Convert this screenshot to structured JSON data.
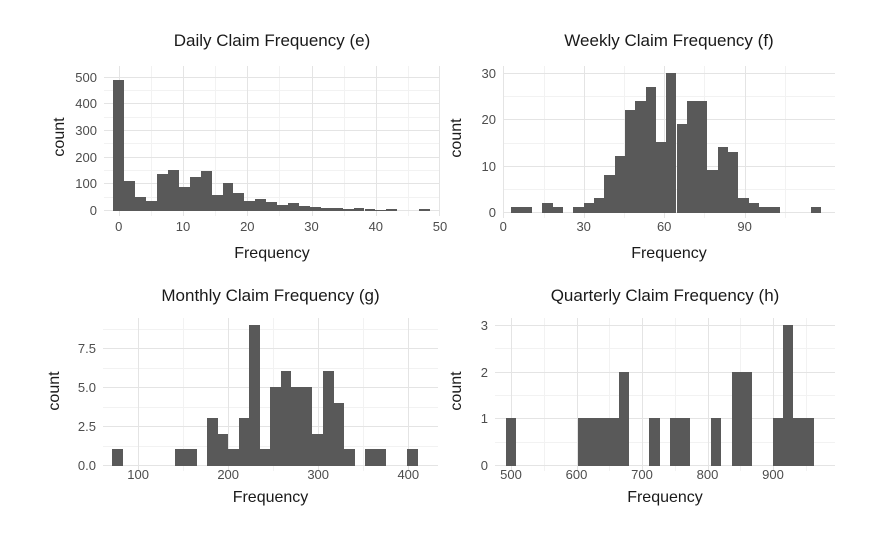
{
  "figure": {
    "background": "#ffffff",
    "bar_color": "#595959",
    "grid_major_color": "#e4e4e4",
    "grid_minor_color": "#f2f2f2",
    "tick_label_color": "#4d4d4d",
    "text_color": "#1a1a1a"
  },
  "chart_data": [
    {
      "type": "bar",
      "subtype": "histogram",
      "title": "Daily Claim Frequency (e)",
      "xlabel": "Frequency",
      "ylabel": "count",
      "bin_start": -0.85,
      "bin_width": 1.7,
      "counts": [
        487,
        110,
        50,
        32,
        134,
        150,
        85,
        125,
        145,
        58,
        100,
        62,
        35,
        42,
        30,
        18,
        25,
        14,
        12,
        8,
        6,
        4,
        8,
        2,
        1,
        2,
        0,
        0,
        2
      ],
      "xlim": [
        -2.3,
        50
      ],
      "ylim": [
        0,
        540
      ],
      "x_ticks": [
        0,
        10,
        20,
        30,
        40,
        50
      ],
      "x_tick_labels": [
        "0",
        "10",
        "20",
        "30",
        "40",
        "50"
      ],
      "x_minor": [
        5,
        15,
        25,
        35,
        45
      ],
      "y_ticks": [
        0,
        100,
        200,
        300,
        400,
        500
      ],
      "y_tick_labels": [
        "0",
        "100",
        "200",
        "300",
        "400",
        "500"
      ],
      "y_minor": [
        50,
        150,
        250,
        350,
        450
      ],
      "grid": true,
      "legend": false
    },
    {
      "type": "bar",
      "subtype": "histogram",
      "title": "Weekly Claim Frequency (f)",
      "xlabel": "Frequency",
      "ylabel": "count",
      "bin_start": 3,
      "bin_width": 3.85,
      "counts": [
        1,
        1,
        0,
        2,
        1,
        0,
        1,
        2,
        3,
        8,
        12,
        22,
        24,
        27,
        15,
        30,
        19,
        24,
        24,
        9,
        14,
        13,
        3,
        2,
        1,
        1,
        0,
        0,
        0,
        1
      ],
      "xlim": [
        -0.1,
        123.7
      ],
      "ylim": [
        0,
        31.5
      ],
      "x_ticks": [
        0,
        30,
        60,
        90
      ],
      "x_tick_labels": [
        "0",
        "30",
        "60",
        "90"
      ],
      "x_minor": [
        15,
        45,
        75,
        105
      ],
      "y_ticks": [
        0,
        10,
        20,
        30
      ],
      "y_tick_labels": [
        "0",
        "10",
        "20",
        "30"
      ],
      "y_minor": [
        5,
        15,
        25
      ],
      "grid": true,
      "legend": false
    },
    {
      "type": "bar",
      "subtype": "histogram",
      "title": "Monthly Claim Frequency (g)",
      "xlabel": "Frequency",
      "ylabel": "count",
      "bin_start": 71.3,
      "bin_width": 11.7,
      "counts": [
        1,
        0,
        0,
        0,
        0,
        0,
        1,
        1,
        0,
        3,
        2,
        1,
        3,
        9,
        1,
        5,
        6,
        5,
        5,
        2,
        6,
        4,
        1,
        0,
        1,
        1,
        0,
        0,
        1
      ],
      "xlim": [
        61,
        433
      ],
      "ylim": [
        0,
        9.42
      ],
      "x_ticks": [
        100,
        200,
        300,
        400
      ],
      "x_tick_labels": [
        "100",
        "200",
        "300",
        "400"
      ],
      "x_minor": [
        150,
        250,
        350
      ],
      "y_ticks": [
        0,
        2.5,
        5,
        7.5
      ],
      "y_tick_labels": [
        "0.0",
        "2.5",
        "5.0",
        "7.5"
      ],
      "y_minor": [
        1.25,
        3.75,
        6.25,
        8.75
      ],
      "grid": true,
      "legend": false
    },
    {
      "type": "bar",
      "subtype": "histogram",
      "title": "Quarterly Claim Frequency (h)",
      "xlabel": "Frequency",
      "ylabel": "count",
      "bin_start": 492,
      "bin_width": 15.67,
      "counts": [
        1,
        0,
        0,
        0,
        0,
        0,
        0,
        1,
        1,
        1,
        1,
        2,
        0,
        0,
        1,
        0,
        1,
        1,
        0,
        0,
        1,
        0,
        2,
        2,
        0,
        0,
        1,
        3,
        1,
        1
      ],
      "xlim": [
        475.6,
        994.7
      ],
      "ylim": [
        0,
        3.15
      ],
      "x_ticks": [
        500,
        600,
        700,
        800,
        900
      ],
      "x_tick_labels": [
        "500",
        "600",
        "700",
        "800",
        "900"
      ],
      "x_minor": [
        550,
        650,
        750,
        850,
        950
      ],
      "y_ticks": [
        0,
        1,
        2,
        3
      ],
      "y_tick_labels": [
        "0",
        "1",
        "2",
        "3"
      ],
      "y_minor": [
        0.5,
        1.5,
        2.5
      ],
      "grid": true,
      "legend": false
    }
  ]
}
